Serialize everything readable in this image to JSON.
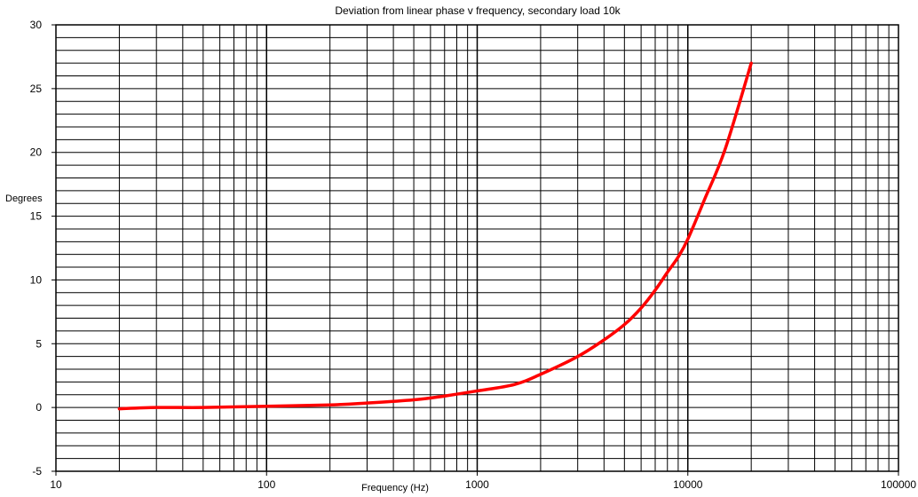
{
  "chart_data": {
    "type": "line",
    "title": "Deviation from linear phase v frequency, secondary load  10k",
    "xlabel": "Frequency (Hz)",
    "ylabel": "Degrees",
    "xscale": "log",
    "xlim": [
      10,
      100000
    ],
    "ylim": [
      -5,
      30
    ],
    "xticks": [
      10,
      100,
      1000,
      10000,
      100000
    ],
    "yticks": [
      -5,
      0,
      5,
      10,
      15,
      20,
      25,
      30
    ],
    "grid": true,
    "legend": "none",
    "series": [
      {
        "color": "#ff0000",
        "x": [
          20,
          30,
          50,
          100,
          200,
          300,
          500,
          700,
          1000,
          1500,
          2000,
          3000,
          4000,
          5000,
          6000,
          7000,
          8000,
          9000,
          10000,
          12000,
          15000,
          20000
        ],
        "y": [
          -0.1,
          0.0,
          0.0,
          0.1,
          0.2,
          0.35,
          0.6,
          0.9,
          1.3,
          1.8,
          2.6,
          4.0,
          5.3,
          6.5,
          7.8,
          9.2,
          10.6,
          11.8,
          13.2,
          16.3,
          20.2,
          27.0
        ]
      }
    ]
  }
}
